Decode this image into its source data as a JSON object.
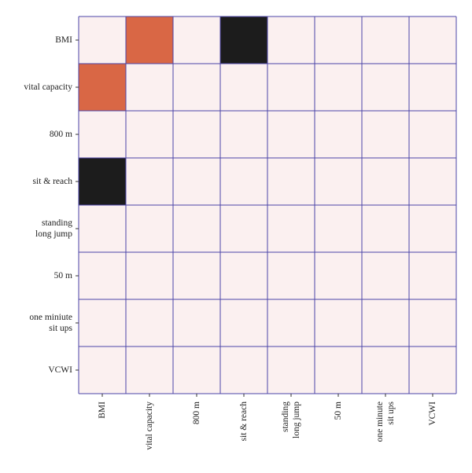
{
  "colors": {
    "background_cell": "#fbf0f0",
    "positive": "#d96745",
    "negative": "#1c1c1c",
    "grid": "#4b45a8"
  },
  "chart_data": {
    "type": "heatmap",
    "title": "",
    "xlabel": "",
    "ylabel": "",
    "rows": [
      [
        "BMI"
      ],
      [
        "vital capacity"
      ],
      [
        "800 m"
      ],
      [
        "sit & reach"
      ],
      [
        "standing",
        "long jump"
      ],
      [
        "50 m"
      ],
      [
        "one miniute",
        "sit ups"
      ],
      [
        "VCWI"
      ]
    ],
    "columns": [
      [
        "BMI"
      ],
      [
        "vital capacity"
      ],
      [
        "800 m"
      ],
      [
        "sit & reach"
      ],
      [
        "standing",
        "long jump"
      ],
      [
        "50 m"
      ],
      [
        "one minute",
        "sit ups"
      ],
      [
        "VCWI"
      ]
    ],
    "cells": [
      [
        0,
        1,
        0,
        -1,
        0,
        0,
        0,
        0
      ],
      [
        1,
        0,
        0,
        0,
        0,
        0,
        0,
        0
      ],
      [
        0,
        0,
        0,
        0,
        0,
        0,
        0,
        0
      ],
      [
        -1,
        0,
        0,
        0,
        0,
        0,
        0,
        0
      ],
      [
        0,
        0,
        0,
        0,
        0,
        0,
        0,
        0
      ],
      [
        0,
        0,
        0,
        0,
        0,
        0,
        0,
        0
      ],
      [
        0,
        0,
        0,
        0,
        0,
        0,
        0,
        0
      ],
      [
        0,
        0,
        0,
        0,
        0,
        0,
        0,
        0
      ]
    ],
    "grid": true,
    "legend": "none"
  }
}
